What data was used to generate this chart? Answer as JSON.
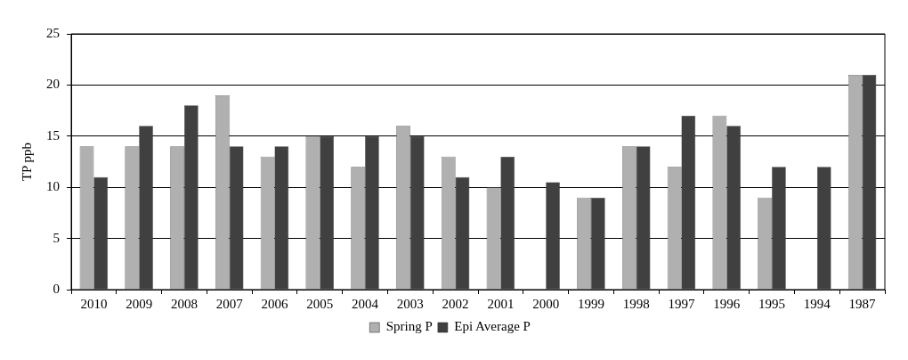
{
  "chart_data": {
    "type": "bar",
    "ylabel": "TP ppb",
    "categories": [
      "2010",
      "2009",
      "2008",
      "2007",
      "2006",
      "2005",
      "2004",
      "2003",
      "2002",
      "2001",
      "2000",
      "1999",
      "1998",
      "1997",
      "1996",
      "1995",
      "1994",
      "1987"
    ],
    "series": [
      {
        "name": "Spring P",
        "color": "#b0b0b0",
        "values": [
          14,
          14,
          14,
          19,
          13,
          15,
          12,
          16,
          13,
          10,
          null,
          9,
          14,
          12,
          17,
          9,
          null,
          21
        ]
      },
      {
        "name": "Epi Average P",
        "color": "#404040",
        "values": [
          11,
          16,
          18,
          14,
          14,
          15,
          15,
          15,
          11,
          13,
          10.5,
          9,
          14,
          17,
          16,
          12,
          12,
          21
        ]
      }
    ],
    "ylim": [
      0,
      25
    ],
    "yticks": [
      0,
      5,
      10,
      15,
      20,
      25
    ],
    "grid": "y",
    "legend": "bottom"
  }
}
